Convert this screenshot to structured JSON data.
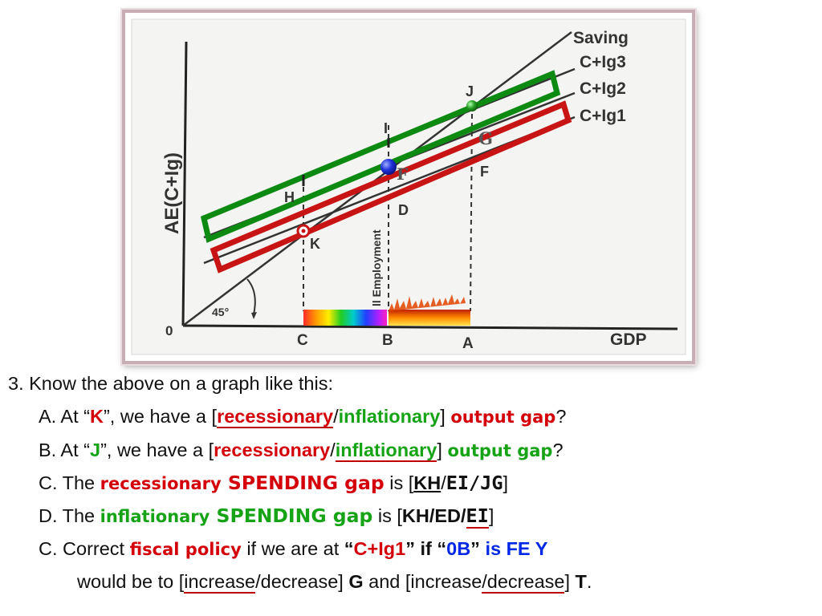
{
  "diagram": {
    "y_axis_label": "AE(C+Ig)",
    "x_axis_label": "GDP",
    "origin_label": "0",
    "angle_label": "45°",
    "fe_label": "ll Employment",
    "lines": {
      "saving": "Saving",
      "cig3": "C+Ig3",
      "cig2": "C+Ig2",
      "cig1": "C+Ig1"
    },
    "points": {
      "i": "I",
      "j": "J",
      "g": "G",
      "f_serif": "F",
      "f": "F",
      "h": "H",
      "k": "K",
      "d": "D"
    },
    "x_ticks": {
      "c": "C",
      "b": "B",
      "a": "A"
    },
    "colors": {
      "green_box": "#0c8a12",
      "red_box": "#c81414",
      "blue_dot": "#1e2fd0",
      "green_dot": "#2aa52a"
    }
  },
  "questions": {
    "intro": "3. Know the above on a graph like this:",
    "a": {
      "prefix": "A. At “",
      "point": "K",
      "mid": "”, we have a  [",
      "opt1": "recessionary",
      "slash": "/",
      "opt2": "inflationary",
      "close": "] ",
      "term": "output gap",
      "end": "?"
    },
    "b": {
      "prefix": "B. At “",
      "point": "J",
      "mid": "”, we have a [",
      "opt1": "recessionary",
      "slash": "/",
      "opt2": "inflationary",
      "close": "] ",
      "term": "output gap",
      "end": "?"
    },
    "c": {
      "prefix": "C. The ",
      "term1": "recessionary",
      "term2": " SPENDING gap",
      "mid": " is [",
      "opt1": "KH",
      "slash": "/",
      "opt2": "EI/JG",
      "end": "]"
    },
    "d": {
      "prefix": "D. The ",
      "term1": "inflationary",
      "term2": " SPENDING gap",
      "mid": " is [",
      "opt1": "KH/ED/",
      "opt2": "EI",
      "end": "]"
    },
    "e": {
      "prefix": "C. Correct ",
      "term": "fiscal policy",
      "mid": " if we are at ",
      "q1": "“",
      "line": "C+Ig1",
      "q2": "”",
      "if_text": " if “",
      "zb": "0B",
      "q3": "”",
      "isfe": " is FE  Y"
    },
    "f": {
      "prefix": "would be to [",
      "opt1": "increase",
      "slash1": "/decrease] ",
      "g": "G",
      "mid": " and [increase",
      "opt2": "/decrease",
      "close": "] ",
      "t": "T",
      "end": "."
    }
  }
}
